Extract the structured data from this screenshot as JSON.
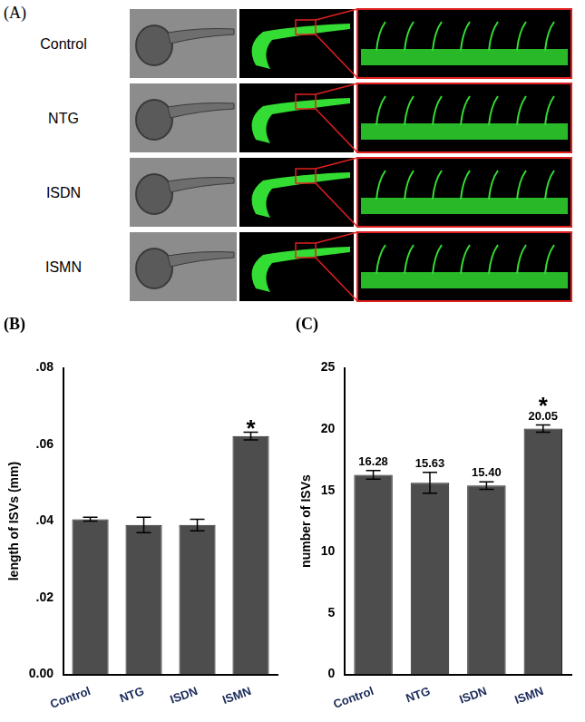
{
  "panel_a": {
    "label": "(A)",
    "rows": [
      "Control",
      "NTG",
      "ISDN",
      "ISMN"
    ]
  },
  "chart_data": [
    {
      "type": "bar",
      "title": "(B)",
      "y_label": "length of ISVs (mm)",
      "categories": [
        "Control",
        "NTG",
        "ISDN",
        "ISMN"
      ],
      "values": [
        0.0405,
        0.039,
        0.039,
        0.0622
      ],
      "errors": [
        0.0005,
        0.002,
        0.0015,
        0.001
      ],
      "color": "#4d4d4d",
      "ylim": [
        0,
        0.08
      ],
      "yticks": [
        {
          "value": 0,
          "label": "0.00"
        },
        {
          "value": 0.02,
          "label": ".02"
        },
        {
          "value": 0.04,
          "label": ".04"
        },
        {
          "value": 0.06,
          "label": ".06"
        },
        {
          "value": 0.08,
          "label": ".08"
        }
      ],
      "grid": false,
      "annotations": [
        {
          "category": "ISMN",
          "text": "*"
        }
      ]
    },
    {
      "type": "bar",
      "title": "(C)",
      "y_label": "number of ISVs",
      "categories": [
        "Control",
        "NTG",
        "ISDN",
        "ISMN"
      ],
      "values": [
        16.28,
        15.63,
        15.4,
        20.05
      ],
      "value_labels": [
        "16.28",
        "15.63",
        "15.40",
        "20.05"
      ],
      "errors": [
        0.35,
        0.85,
        0.3,
        0.3
      ],
      "color": "#4d4d4d",
      "ylim": [
        0,
        25
      ],
      "yticks": [
        0,
        5,
        10,
        15,
        20,
        25
      ],
      "grid": false,
      "data_labels": true,
      "annotations": [
        {
          "category": "ISMN",
          "text": "*"
        }
      ]
    }
  ]
}
